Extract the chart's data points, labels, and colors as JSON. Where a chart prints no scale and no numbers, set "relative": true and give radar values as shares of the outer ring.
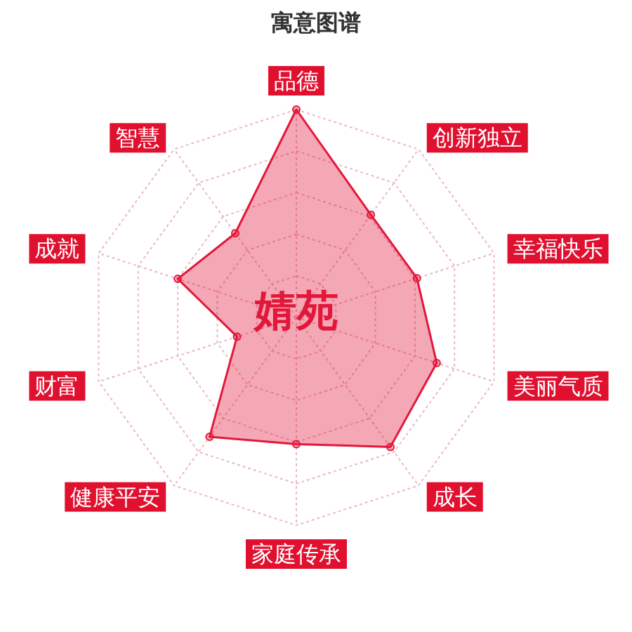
{
  "chart_data": {
    "type": "radar",
    "title": "寓意图谱",
    "annotations": [
      "婧苑"
    ],
    "categories": [
      "品德",
      "创新独立",
      "幸福快乐",
      "美丽气质",
      "成长",
      "家庭传承",
      "健康平安",
      "财富",
      "成就",
      "智慧"
    ],
    "relative": true,
    "series": [
      {
        "color": "#e3173a",
        "values": [
          1,
          0.61,
          0.61,
          0.71,
          0.77,
          0.61,
          0.71,
          0.3,
          0.6,
          0.5
        ]
      }
    ],
    "grid": true,
    "marker": "circle"
  }
}
